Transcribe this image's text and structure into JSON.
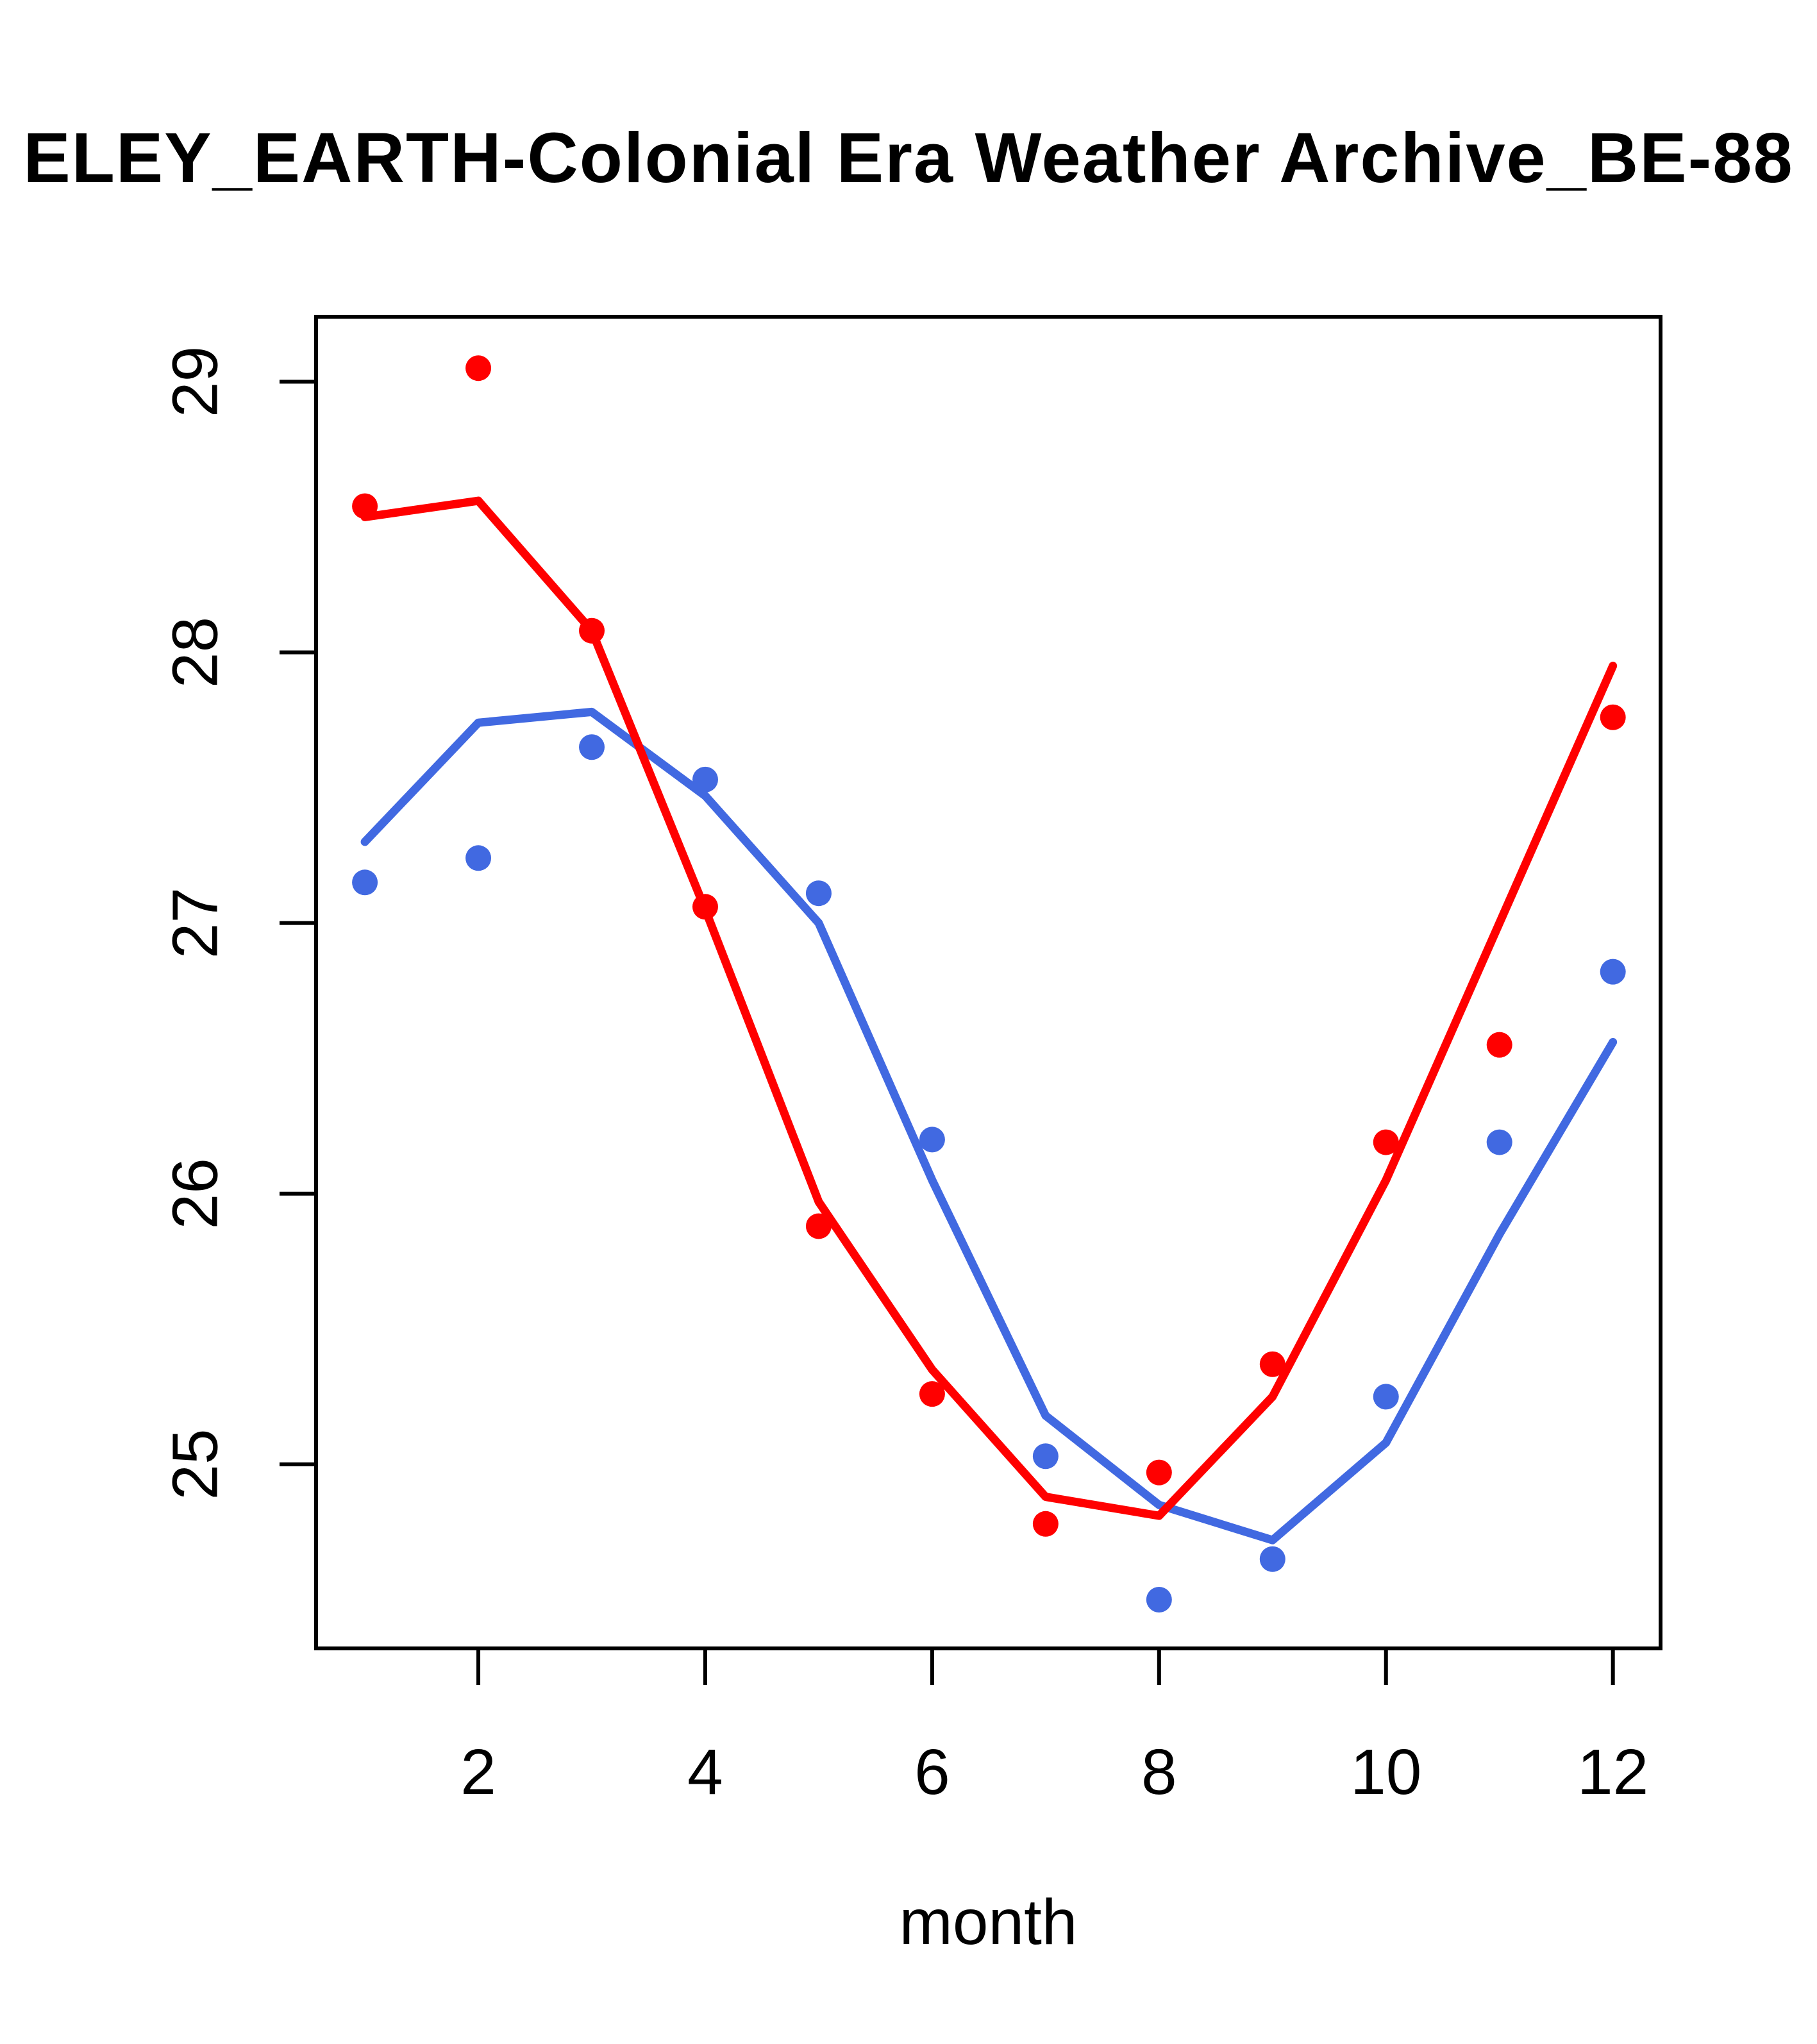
{
  "title": {
    "text": "ELEY_EARTH-Colonial Era Weather Archive_BE-88"
  },
  "chart_data": {
    "type": "line",
    "title": "ELEY_EARTH-Colonial Era Weather Archive_BE-88",
    "xlabel": "month",
    "ylabel": "",
    "x": [
      1,
      2,
      3,
      4,
      5,
      6,
      7,
      8,
      9,
      10,
      11,
      12
    ],
    "x_tick_values": [
      2,
      4,
      6,
      8,
      10,
      12
    ],
    "x_tick_labels": [
      "2",
      "4",
      "6",
      "8",
      "10",
      "12"
    ],
    "y_tick_values": [
      25,
      26,
      27,
      28,
      29
    ],
    "y_tick_labels": [
      "25",
      "26",
      "27",
      "28",
      "29"
    ],
    "xlim": [
      0.57,
      12.42
    ],
    "ylim": [
      24.32,
      29.24
    ],
    "grid": false,
    "legend_position": "none",
    "axis_color": "#000000",
    "background": "#FFFFFF",
    "series": [
      {
        "name": "red-observations",
        "kind": "points",
        "color": "#FF0000",
        "values": [
          28.54,
          29.05,
          28.08,
          27.06,
          25.88,
          25.26,
          24.78,
          24.97,
          25.37,
          26.19,
          26.55,
          27.76
        ]
      },
      {
        "name": "red-trend-line",
        "kind": "line",
        "color": "#FF0000",
        "values": [
          28.5,
          28.56,
          28.08,
          27.05,
          25.97,
          25.35,
          24.88,
          24.81,
          25.25,
          26.05,
          27.0,
          27.95
        ]
      },
      {
        "name": "blue-observations",
        "kind": "points",
        "color": "#4169E1",
        "values": [
          27.15,
          27.24,
          27.65,
          27.53,
          27.11,
          26.2,
          25.03,
          24.5,
          24.65,
          25.25,
          26.19,
          26.82
        ]
      },
      {
        "name": "blue-trend-line",
        "kind": "line",
        "color": "#4169E1",
        "values": [
          27.3,
          27.74,
          27.78,
          27.47,
          27.0,
          26.05,
          25.18,
          24.85,
          24.72,
          25.08,
          25.85,
          26.56
        ]
      }
    ]
  }
}
